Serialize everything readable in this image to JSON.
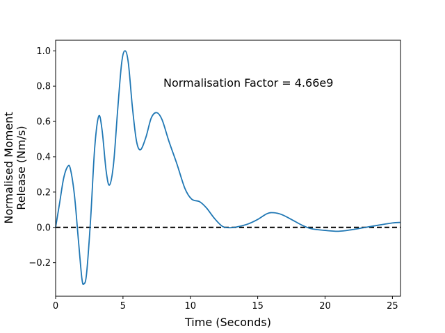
{
  "chart_data": {
    "type": "line",
    "title": "",
    "xlabel": "Time (Seconds)",
    "ylabel_lines": [
      "Normalised Moment",
      "Release (Nm/s)"
    ],
    "xlim": [
      0,
      25.6
    ],
    "ylim": [
      -0.39,
      1.06
    ],
    "xticks": [
      0,
      5,
      10,
      15,
      20,
      25
    ],
    "xtick_labels": [
      "0",
      "5",
      "10",
      "15",
      "20",
      "25"
    ],
    "yticks": [
      -0.2,
      0.0,
      0.2,
      0.4,
      0.6,
      0.8,
      1.0
    ],
    "ytick_labels": [
      "−0.2",
      "0.0",
      "0.2",
      "0.4",
      "0.6",
      "0.8",
      "1.0"
    ],
    "grid": false,
    "annotation": {
      "text": "Normalisation Factor = 4.66e9",
      "x": 8.0,
      "y": 0.82
    },
    "reference_line": {
      "y": 0,
      "style": "dashed",
      "color": "#000000"
    },
    "series": [
      {
        "color": "#1f77b4",
        "points": [
          [
            0.0,
            0.0
          ],
          [
            0.3,
            0.14
          ],
          [
            0.6,
            0.28
          ],
          [
            0.9,
            0.345
          ],
          [
            1.1,
            0.33
          ],
          [
            1.4,
            0.18
          ],
          [
            1.7,
            -0.08
          ],
          [
            1.95,
            -0.29
          ],
          [
            2.1,
            -0.32
          ],
          [
            2.3,
            -0.26
          ],
          [
            2.6,
            0.05
          ],
          [
            2.9,
            0.45
          ],
          [
            3.2,
            0.63
          ],
          [
            3.45,
            0.55
          ],
          [
            3.75,
            0.32
          ],
          [
            4.0,
            0.24
          ],
          [
            4.3,
            0.36
          ],
          [
            4.6,
            0.66
          ],
          [
            4.9,
            0.93
          ],
          [
            5.15,
            1.0
          ],
          [
            5.4,
            0.93
          ],
          [
            5.7,
            0.68
          ],
          [
            6.0,
            0.49
          ],
          [
            6.3,
            0.44
          ],
          [
            6.7,
            0.51
          ],
          [
            7.1,
            0.62
          ],
          [
            7.5,
            0.65
          ],
          [
            7.9,
            0.61
          ],
          [
            8.4,
            0.49
          ],
          [
            9.0,
            0.36
          ],
          [
            9.6,
            0.22
          ],
          [
            10.1,
            0.16
          ],
          [
            10.7,
            0.145
          ],
          [
            11.2,
            0.11
          ],
          [
            11.8,
            0.05
          ],
          [
            12.4,
            0.005
          ],
          [
            13.0,
            -0.002
          ],
          [
            13.6,
            0.005
          ],
          [
            14.3,
            0.02
          ],
          [
            15.0,
            0.045
          ],
          [
            15.7,
            0.078
          ],
          [
            16.2,
            0.083
          ],
          [
            16.8,
            0.072
          ],
          [
            17.5,
            0.045
          ],
          [
            18.3,
            0.012
          ],
          [
            19.0,
            -0.008
          ],
          [
            20.0,
            -0.017
          ],
          [
            21.0,
            -0.022
          ],
          [
            22.0,
            -0.013
          ],
          [
            23.0,
            0.0
          ],
          [
            24.0,
            0.013
          ],
          [
            25.0,
            0.025
          ],
          [
            25.6,
            0.028
          ]
        ]
      }
    ]
  }
}
